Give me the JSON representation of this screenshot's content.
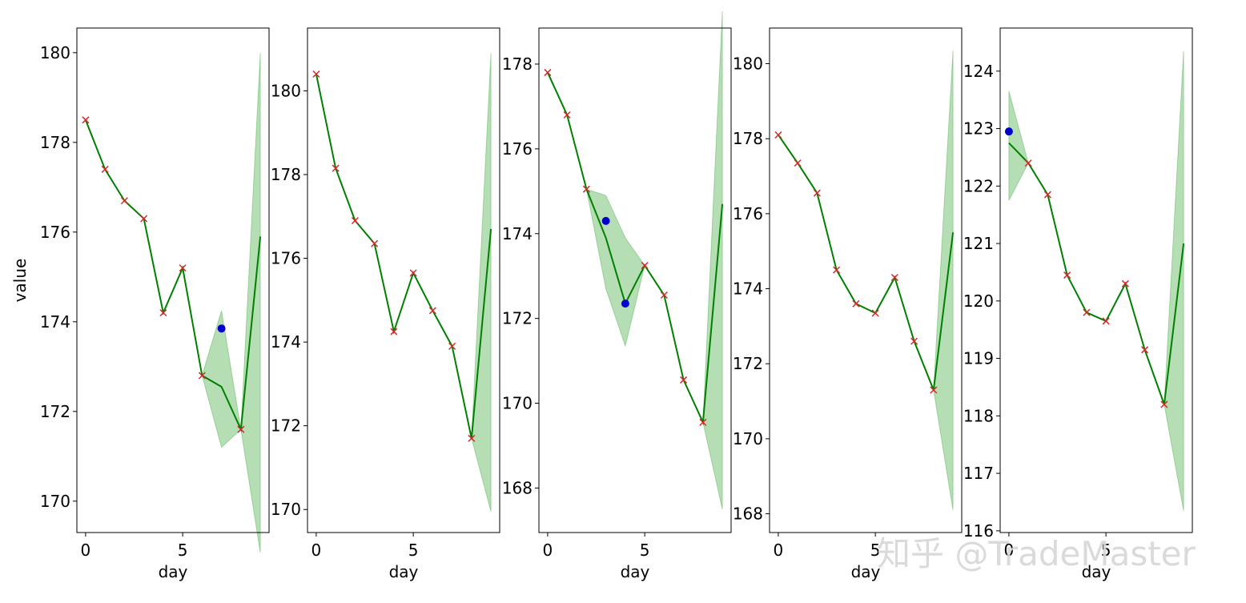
{
  "watermark": "知乎 @TradeMaster",
  "colors": {
    "line": "#008000",
    "band": "#2ca02c",
    "cross": "#d62728",
    "dot": "#0000cc"
  },
  "chart_data": [
    {
      "type": "line",
      "xlabel": "day",
      "ylabel": "value",
      "xlim": [
        -0.45,
        9.45
      ],
      "ylim": [
        169.3,
        180.55
      ],
      "xticks": [
        0,
        5
      ],
      "yticks": [
        170,
        172,
        174,
        176,
        178,
        180
      ],
      "series": [
        {
          "kind": "line",
          "x": [
            0,
            1,
            2,
            3,
            4,
            5,
            6,
            7,
            8,
            9
          ],
          "y": [
            178.5,
            177.4,
            176.7,
            176.3,
            174.2,
            175.2,
            172.8,
            172.55,
            171.6,
            175.9
          ]
        },
        {
          "kind": "markers-x",
          "x": [
            0,
            1,
            2,
            3,
            4,
            5,
            6,
            8
          ],
          "y": [
            178.5,
            177.4,
            176.7,
            176.3,
            174.2,
            175.2,
            172.8,
            171.6
          ]
        },
        {
          "kind": "markers-dot",
          "x": [
            7
          ],
          "y": [
            173.85
          ]
        },
        {
          "kind": "band",
          "x": [
            6,
            7,
            8,
            9
          ],
          "lower": [
            172.8,
            171.2,
            171.6,
            168.85
          ],
          "upper": [
            172.8,
            174.25,
            171.6,
            180.0
          ]
        }
      ]
    },
    {
      "type": "line",
      "xlabel": "day",
      "ylabel": "",
      "xlim": [
        -0.45,
        9.45
      ],
      "ylim": [
        169.45,
        181.5
      ],
      "xticks": [
        0,
        5
      ],
      "yticks": [
        170,
        172,
        174,
        176,
        178,
        180
      ],
      "series": [
        {
          "kind": "line",
          "x": [
            0,
            1,
            2,
            3,
            4,
            5,
            6,
            7,
            8,
            9
          ],
          "y": [
            180.4,
            178.15,
            176.9,
            176.35,
            174.25,
            175.65,
            174.75,
            173.9,
            171.7,
            176.7
          ]
        },
        {
          "kind": "markers-x",
          "x": [
            0,
            1,
            2,
            3,
            4,
            5,
            6,
            7,
            8
          ],
          "y": [
            180.4,
            178.15,
            176.9,
            176.35,
            174.25,
            175.65,
            174.75,
            173.9,
            171.7
          ]
        },
        {
          "kind": "band",
          "x": [
            8,
            9
          ],
          "lower": [
            171.7,
            169.95
          ],
          "upper": [
            171.7,
            180.9
          ]
        }
      ]
    },
    {
      "type": "line",
      "xlabel": "day",
      "ylabel": "",
      "xlim": [
        -0.45,
        9.45
      ],
      "ylim": [
        166.95,
        178.85
      ],
      "xticks": [
        0,
        5
      ],
      "yticks": [
        168,
        170,
        172,
        174,
        176,
        178
      ],
      "series": [
        {
          "kind": "line",
          "x": [
            0,
            1,
            2,
            3,
            4,
            5,
            6,
            7,
            8,
            9
          ],
          "y": [
            177.8,
            176.8,
            175.05,
            173.9,
            172.35,
            173.25,
            172.55,
            170.55,
            169.55,
            174.7
          ]
        },
        {
          "kind": "markers-x",
          "x": [
            0,
            1,
            2,
            5,
            6,
            7,
            8
          ],
          "y": [
            177.8,
            176.8,
            175.05,
            173.25,
            172.55,
            170.55,
            169.55
          ]
        },
        {
          "kind": "markers-dot",
          "x": [
            3,
            4
          ],
          "y": [
            174.3,
            172.35
          ]
        },
        {
          "kind": "band",
          "x": [
            2,
            3,
            4,
            5
          ],
          "lower": [
            175.05,
            172.7,
            171.35,
            173.25
          ],
          "upper": [
            175.05,
            174.9,
            173.9,
            173.25
          ]
        },
        {
          "kind": "band",
          "x": [
            8,
            9
          ],
          "lower": [
            169.55,
            167.5
          ],
          "upper": [
            169.55,
            179.25
          ]
        }
      ]
    },
    {
      "type": "line",
      "xlabel": "day",
      "ylabel": "",
      "xlim": [
        -0.45,
        9.45
      ],
      "ylim": [
        167.5,
        180.95
      ],
      "xticks": [
        0,
        5
      ],
      "yticks": [
        168,
        170,
        172,
        174,
        176,
        178,
        180
      ],
      "series": [
        {
          "kind": "line",
          "x": [
            0,
            1,
            2,
            3,
            4,
            5,
            6,
            7,
            8,
            9
          ],
          "y": [
            178.1,
            177.35,
            176.55,
            174.5,
            173.6,
            173.35,
            174.3,
            172.6,
            171.3,
            175.5
          ]
        },
        {
          "kind": "markers-x",
          "x": [
            0,
            1,
            2,
            3,
            4,
            5,
            6,
            7,
            8
          ],
          "y": [
            178.1,
            177.35,
            176.55,
            174.5,
            173.6,
            173.35,
            174.3,
            172.6,
            171.3
          ]
        },
        {
          "kind": "band",
          "x": [
            8,
            9
          ],
          "lower": [
            171.3,
            168.1
          ],
          "upper": [
            171.3,
            180.35
          ]
        }
      ]
    },
    {
      "type": "line",
      "xlabel": "day",
      "ylabel": "",
      "xlim": [
        -0.45,
        9.45
      ],
      "ylim": [
        115.97,
        124.75
      ],
      "xticks": [
        0,
        5
      ],
      "yticks": [
        116,
        117,
        118,
        119,
        120,
        121,
        122,
        123,
        124
      ],
      "series": [
        {
          "kind": "line",
          "x": [
            0,
            1,
            2,
            3,
            4,
            5,
            6,
            7,
            8,
            9
          ],
          "y": [
            122.75,
            122.4,
            121.85,
            120.45,
            119.8,
            119.65,
            120.3,
            119.15,
            118.2,
            121.0
          ]
        },
        {
          "kind": "markers-x",
          "x": [
            1,
            2,
            3,
            4,
            5,
            6,
            7,
            8
          ],
          "y": [
            122.4,
            121.85,
            120.45,
            119.8,
            119.65,
            120.3,
            119.15,
            118.2
          ]
        },
        {
          "kind": "markers-dot",
          "x": [
            0
          ],
          "y": [
            122.95
          ]
        },
        {
          "kind": "band",
          "x": [
            0,
            1
          ],
          "lower": [
            121.75,
            122.4
          ],
          "upper": [
            123.65,
            122.4
          ]
        },
        {
          "kind": "band",
          "x": [
            8,
            9
          ],
          "lower": [
            118.2,
            116.35
          ],
          "upper": [
            118.2,
            124.35
          ]
        }
      ]
    }
  ]
}
